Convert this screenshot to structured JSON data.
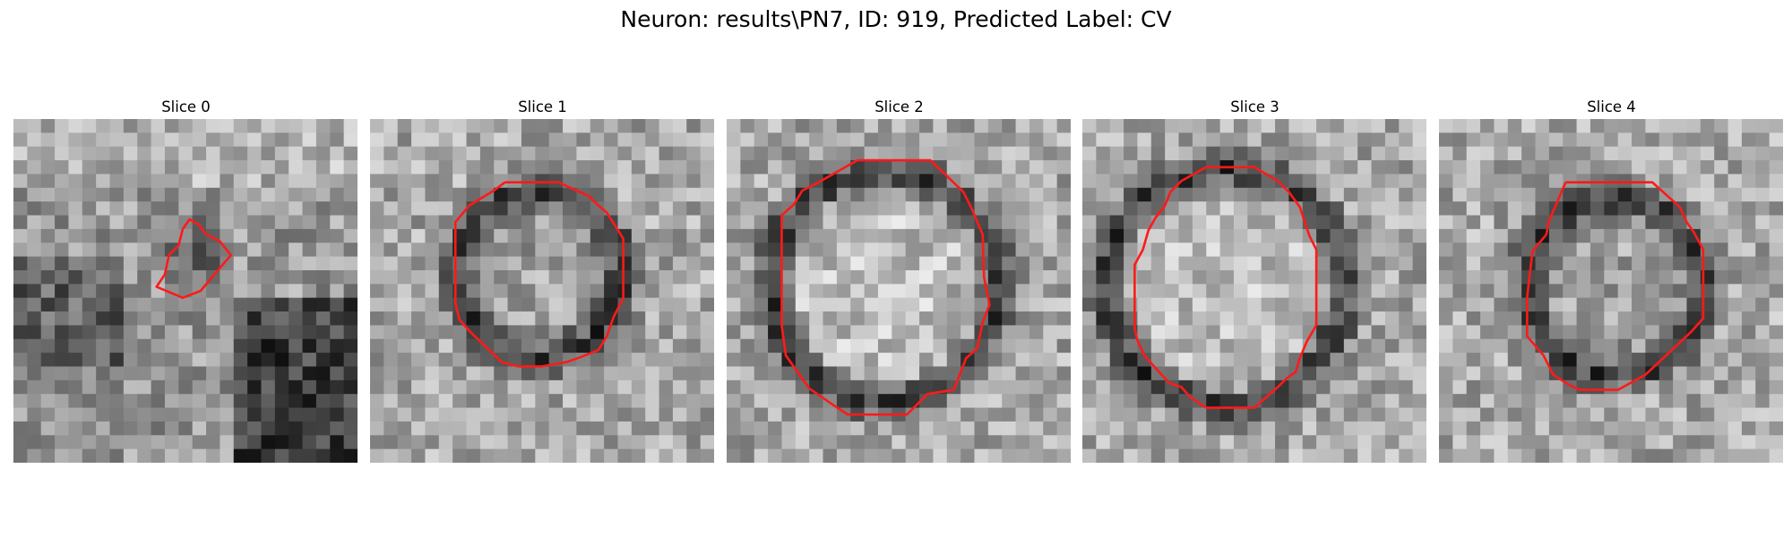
{
  "figure": {
    "title": "Neuron: results\\PN7, ID: 919, Predicted Label: CV",
    "contour_color": "#ff1a1a"
  },
  "panels": [
    {
      "title": "Slice 0",
      "image_theme": "grayscale EM patch, dark region lower right",
      "contour": [
        [
          12.3,
          8.0
        ],
        [
          12.8,
          7.3
        ],
        [
          13.5,
          7.7
        ],
        [
          13.9,
          8.3
        ],
        [
          15.0,
          8.9
        ],
        [
          15.8,
          9.9
        ],
        [
          14.6,
          11.3
        ],
        [
          13.6,
          12.5
        ],
        [
          12.3,
          13.0
        ],
        [
          10.4,
          12.2
        ],
        [
          11.0,
          11.3
        ],
        [
          11.3,
          9.9
        ],
        [
          12.0,
          9.2
        ],
        [
          12.3,
          8.0
        ]
      ]
    },
    {
      "title": "Slice 1",
      "image_theme": "grayscale EM patch, dark ring",
      "contour": [
        [
          9.8,
          4.6
        ],
        [
          13.7,
          4.6
        ],
        [
          15.0,
          5.2
        ],
        [
          15.9,
          5.6
        ],
        [
          16.5,
          6.2
        ],
        [
          17.2,
          6.8
        ],
        [
          18.4,
          8.7
        ],
        [
          18.4,
          13.0
        ],
        [
          17.7,
          14.4
        ],
        [
          17.2,
          15.8
        ],
        [
          16.6,
          16.8
        ],
        [
          15.6,
          17.2
        ],
        [
          14.8,
          17.5
        ],
        [
          14.2,
          17.7
        ],
        [
          12.4,
          18.0
        ],
        [
          10.8,
          18.0
        ],
        [
          9.6,
          17.7
        ],
        [
          7.3,
          15.5
        ],
        [
          6.5,
          14.6
        ],
        [
          6.2,
          13.4
        ],
        [
          6.2,
          7.5
        ],
        [
          7.2,
          6.3
        ],
        [
          8.0,
          5.8
        ],
        [
          9.0,
          5.2
        ],
        [
          9.8,
          4.6
        ]
      ]
    },
    {
      "title": "Slice 2",
      "image_theme": "grayscale EM patch, bright interior with dark rim",
      "contour": [
        [
          9.5,
          3.0
        ],
        [
          14.8,
          3.0
        ],
        [
          17.2,
          5.3
        ],
        [
          17.8,
          6.5
        ],
        [
          18.6,
          8.4
        ],
        [
          18.7,
          11.5
        ],
        [
          19.1,
          13.5
        ],
        [
          18.6,
          14.8
        ],
        [
          18.2,
          16.7
        ],
        [
          17.4,
          17.4
        ],
        [
          16.5,
          19.7
        ],
        [
          14.6,
          20.0
        ],
        [
          13.1,
          21.5
        ],
        [
          8.8,
          21.5
        ],
        [
          7.6,
          20.7
        ],
        [
          6.0,
          19.6
        ],
        [
          4.3,
          17.2
        ],
        [
          4.0,
          15.0
        ],
        [
          4.0,
          7.0
        ],
        [
          4.9,
          6.2
        ],
        [
          5.5,
          5.2
        ],
        [
          6.5,
          4.7
        ],
        [
          9.5,
          3.0
        ]
      ]
    },
    {
      "title": "Slice 3",
      "image_theme": "grayscale EM patch, large bright circle",
      "contour": [
        [
          9.0,
          3.5
        ],
        [
          12.5,
          3.5
        ],
        [
          14.2,
          4.5
        ],
        [
          15.0,
          5.3
        ],
        [
          15.8,
          6.4
        ],
        [
          16.1,
          7.3
        ],
        [
          16.5,
          8.5
        ],
        [
          17.0,
          9.5
        ],
        [
          17.0,
          15.0
        ],
        [
          16.3,
          16.2
        ],
        [
          15.8,
          17.4
        ],
        [
          15.5,
          18.4
        ],
        [
          14.8,
          18.9
        ],
        [
          14.2,
          19.5
        ],
        [
          12.5,
          21.0
        ],
        [
          9.0,
          21.0
        ],
        [
          7.8,
          20.2
        ],
        [
          7.2,
          19.5
        ],
        [
          6.3,
          19.2
        ],
        [
          5.4,
          18.2
        ],
        [
          4.5,
          17.2
        ],
        [
          4.0,
          16.1
        ],
        [
          3.8,
          15.2
        ],
        [
          3.8,
          10.6
        ],
        [
          4.4,
          9.5
        ],
        [
          4.8,
          8.1
        ],
        [
          5.3,
          7.2
        ],
        [
          6.0,
          6.3
        ],
        [
          6.4,
          5.3
        ],
        [
          7.2,
          4.5
        ],
        [
          9.0,
          3.5
        ]
      ]
    },
    {
      "title": "Slice 4",
      "image_theme": "grayscale EM patch, smaller ring",
      "contour": [
        [
          9.2,
          4.6
        ],
        [
          15.5,
          4.6
        ],
        [
          17.5,
          6.4
        ],
        [
          18.0,
          7.5
        ],
        [
          18.5,
          8.2
        ],
        [
          19.2,
          9.5
        ],
        [
          19.2,
          14.5
        ],
        [
          18.3,
          15.5
        ],
        [
          16.5,
          17.2
        ],
        [
          15.0,
          18.6
        ],
        [
          13.0,
          19.7
        ],
        [
          10.2,
          19.7
        ],
        [
          9.4,
          19.3
        ],
        [
          8.3,
          18.6
        ],
        [
          7.6,
          17.2
        ],
        [
          6.4,
          15.8
        ],
        [
          6.4,
          13.0
        ],
        [
          6.8,
          9.6
        ],
        [
          7.8,
          8.4
        ],
        [
          8.0,
          7.4
        ],
        [
          9.2,
          4.6
        ]
      ]
    }
  ]
}
